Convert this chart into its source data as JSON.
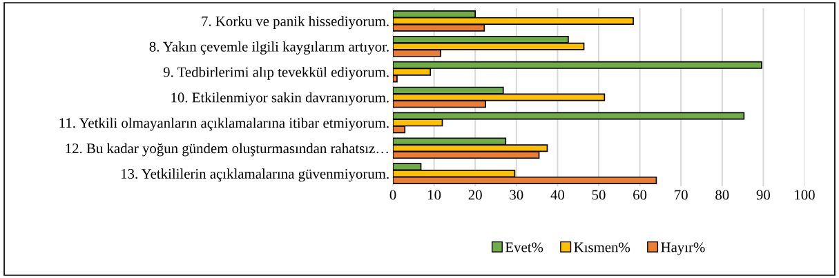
{
  "chart_data": {
    "type": "bar",
    "orientation": "horizontal",
    "categories": [
      "7. Korku ve panik hissediyorum.",
      "8. Yakın çevemle ilgili kaygılarım artıyor.",
      "9. Tedbirlerimi alıp tevekkül ediyorum.",
      "10. Etkilenmiyor sakin davranıyorum.",
      "11. Yetkili olmayanların açıklamalarına itibar etmiyorum.",
      "12. Bu kadar yoğun gündem oluşturmasından rahatsız…",
      "13. Yetkililerin açıklamalarına güvenmiyorum."
    ],
    "series": [
      {
        "name": "Evet%",
        "color": "#70ad47",
        "values": [
          20,
          42.6,
          89.6,
          26.8,
          85.3,
          27.4,
          6.8
        ]
      },
      {
        "name": "Kısmen%",
        "color": "#ffc000",
        "values": [
          58.4,
          46.4,
          9.1,
          51.4,
          12,
          37.5,
          29.6
        ]
      },
      {
        "name": "Hayır%",
        "color": "#ed7d31",
        "values": [
          22.2,
          11.6,
          1,
          22.5,
          2.9,
          35.5,
          64
        ]
      }
    ],
    "xlim": [
      0,
      100
    ],
    "xticks": [
      0,
      10,
      20,
      30,
      40,
      50,
      60,
      70,
      80,
      90,
      100
    ],
    "grid": "x",
    "legend": "bottom"
  }
}
